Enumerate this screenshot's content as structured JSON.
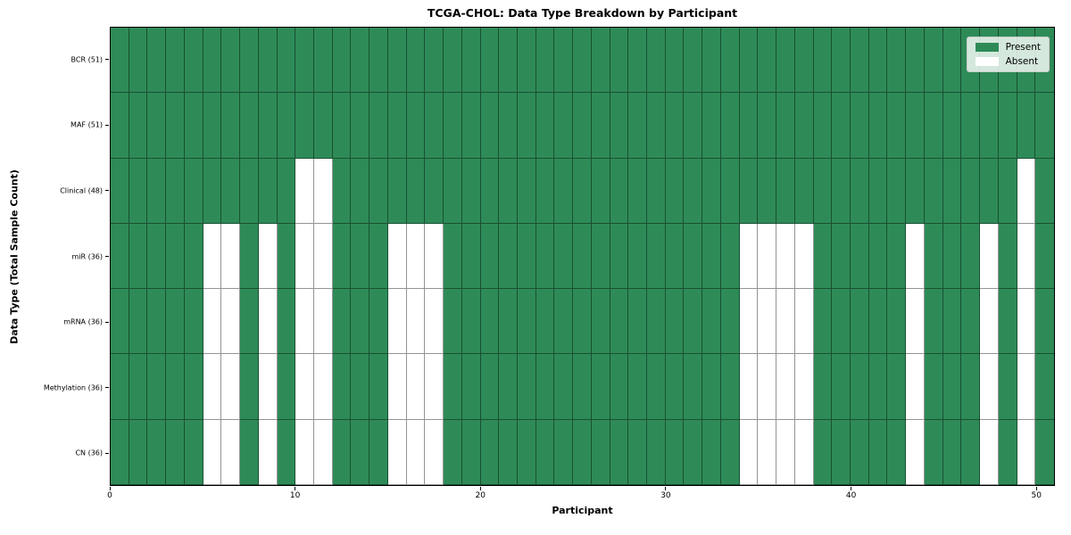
{
  "chart_data": {
    "type": "heatmap",
    "title": "TCGA-CHOL: Data Type Breakdown by Participant",
    "xlabel": "Participant",
    "ylabel": "Data Type (Total Sample Count)",
    "n_participants": 51,
    "x_range": [
      0,
      51
    ],
    "x_ticks": [
      0,
      10,
      20,
      30,
      40,
      50
    ],
    "grid": true,
    "legend_position": "upper right",
    "colors": {
      "present": "#2e8b57",
      "absent": "#ffffff",
      "grid_line": "rgba(0,0,0,0.42)"
    },
    "legend": [
      {
        "label": "Present",
        "color": "#2e8b57"
      },
      {
        "label": "Absent",
        "color": "#ffffff"
      }
    ],
    "rows": [
      {
        "label": "BCR (51)",
        "count": 51,
        "absent_participants": []
      },
      {
        "label": "MAF (51)",
        "count": 51,
        "absent_participants": []
      },
      {
        "label": "Clinical (48)",
        "count": 48,
        "absent_participants": [
          10,
          11,
          49
        ]
      },
      {
        "label": "miR (36)",
        "count": 36,
        "absent_participants": [
          5,
          6,
          8,
          10,
          11,
          15,
          16,
          17,
          34,
          35,
          36,
          37,
          43,
          47,
          49
        ]
      },
      {
        "label": "mRNA (36)",
        "count": 36,
        "absent_participants": [
          5,
          6,
          8,
          10,
          11,
          15,
          16,
          17,
          34,
          35,
          36,
          37,
          43,
          47,
          49
        ]
      },
      {
        "label": "Methylation (36)",
        "count": 36,
        "absent_participants": [
          5,
          6,
          8,
          10,
          11,
          15,
          16,
          17,
          34,
          35,
          36,
          37,
          43,
          47,
          49
        ]
      },
      {
        "label": "CN (36)",
        "count": 36,
        "absent_participants": [
          5,
          6,
          8,
          10,
          11,
          15,
          16,
          17,
          34,
          35,
          36,
          37,
          43,
          47,
          49
        ]
      }
    ]
  }
}
